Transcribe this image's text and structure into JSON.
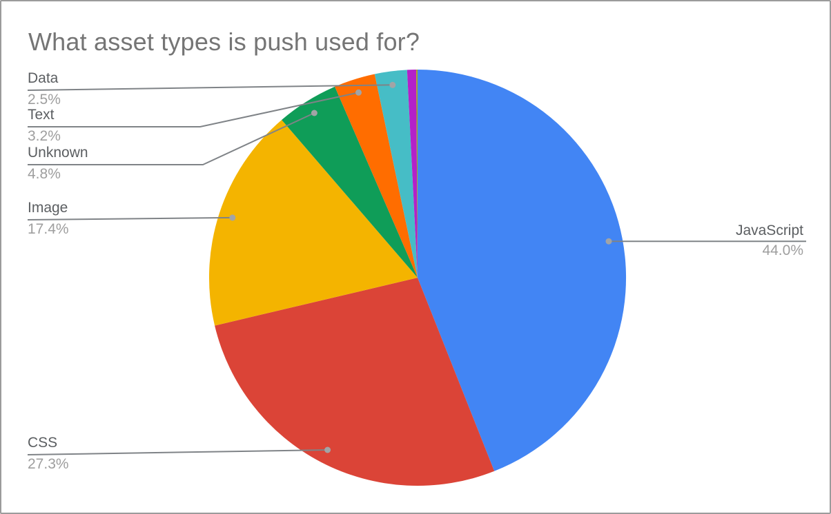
{
  "chart_data": {
    "type": "pie",
    "title": "What asset types is push used for?",
    "legend_position": "labeled-callouts",
    "start_angle_deg": 0,
    "direction": "clockwise",
    "slices": [
      {
        "label": "JavaScript",
        "value": 44.0,
        "display": "44.0%",
        "color": "#4285f4",
        "labeled": true
      },
      {
        "label": "CSS",
        "value": 27.3,
        "display": "27.3%",
        "color": "#db4437",
        "labeled": true
      },
      {
        "label": "Image",
        "value": 17.4,
        "display": "17.4%",
        "color": "#f4b400",
        "labeled": true
      },
      {
        "label": "Unknown",
        "value": 4.8,
        "display": "4.8%",
        "color": "#0f9d58",
        "labeled": true
      },
      {
        "label": "Text",
        "value": 3.2,
        "display": "3.2%",
        "color": "#ff6d00",
        "labeled": true
      },
      {
        "label": "Data",
        "value": 2.5,
        "display": "2.5%",
        "color": "#46bdc6",
        "labeled": true
      },
      {
        "label": "",
        "value": 0.7,
        "display": "",
        "color": "#b321c9",
        "labeled": false
      },
      {
        "label": "",
        "value": 0.1,
        "display": "",
        "color": "#a8a61c",
        "labeled": false
      }
    ]
  },
  "styles": {
    "background": "#ffffff",
    "border_color": "#9b9b9b",
    "title_color": "#757575",
    "name_color": "#5b5e61",
    "percent_color": "#9e9e9e",
    "leader_line_color": "#7f8387",
    "anchor_dot_color": "#a2a4a6"
  }
}
